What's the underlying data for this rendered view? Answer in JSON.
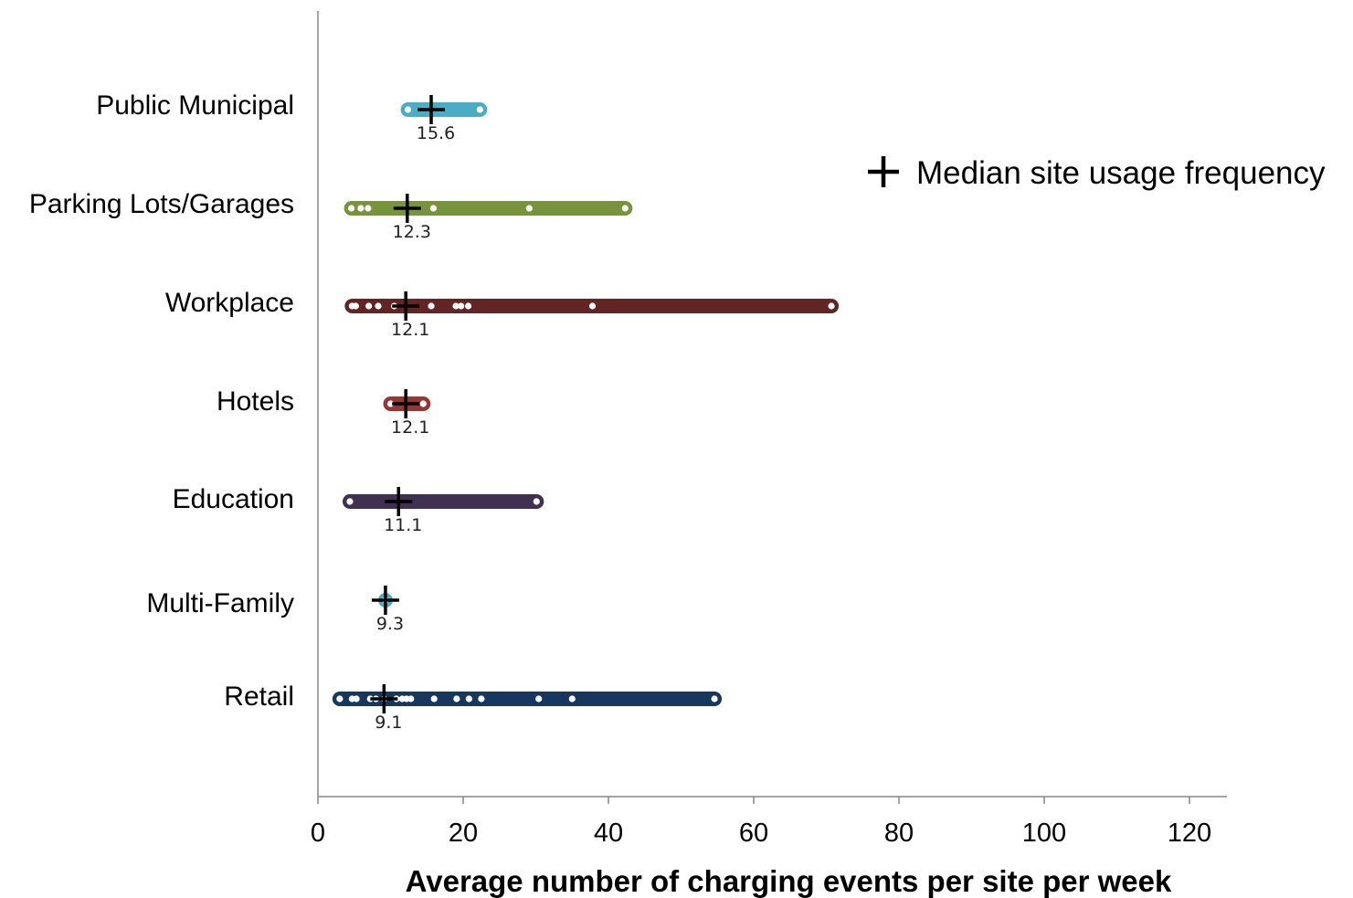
{
  "chart_data": {
    "type": "scatter",
    "title": "",
    "xlabel": "Average number of charging events per site per week",
    "ylabel": "",
    "xlim": [
      0,
      125
    ],
    "xticks": [
      0,
      20,
      40,
      60,
      80,
      100,
      120
    ],
    "grid": false,
    "legend": {
      "label": "Median site usage frequency",
      "position": "right",
      "marker": "plus"
    },
    "categories": [
      {
        "name": "Public Municipal",
        "color": "#4BACC6",
        "min": 12.4,
        "max": 22.3,
        "median": 15.6,
        "median_label": "15.6",
        "points": [
          12.4,
          22.3
        ]
      },
      {
        "name": "Parking Lots/Garages",
        "color": "#77933C",
        "min": 4.6,
        "max": 42.3,
        "median": 12.3,
        "median_label": "12.3",
        "points": [
          4.6,
          5.9,
          6.9,
          15.9,
          29.1,
          42.3
        ]
      },
      {
        "name": "Workplace",
        "color": "#632523",
        "min": 4.7,
        "max": 70.7,
        "median": 12.1,
        "median_label": "12.1",
        "points": [
          4.7,
          5.2,
          7.0,
          8.3,
          10.5,
          15.6,
          19.0,
          19.7,
          20.7,
          37.8,
          70.7
        ]
      },
      {
        "name": "Hotels",
        "color": "#953735",
        "min": 10.0,
        "max": 14.5,
        "median": 12.1,
        "median_label": "12.1",
        "points": [
          10.0,
          14.5
        ]
      },
      {
        "name": "Education",
        "color": "#403151",
        "min": 4.4,
        "max": 30.1,
        "median": 11.1,
        "median_label": "11.1",
        "points": [
          4.4,
          30.1
        ]
      },
      {
        "name": "Multi-Family",
        "color": "#4BACC6",
        "min": 9.3,
        "max": 9.3,
        "median": 9.3,
        "median_label": "9.3",
        "points": [
          9.3
        ]
      },
      {
        "name": "Retail",
        "color": "#17375E",
        "min": 3.0,
        "max": 54.6,
        "median": 9.1,
        "median_label": "9.1",
        "points": [
          3.0,
          4.7,
          5.3,
          7.2,
          8.0,
          9.1,
          10.8,
          11.6,
          12.2,
          12.8,
          16.0,
          19.1,
          20.8,
          22.5,
          30.4,
          35.0,
          54.6
        ]
      }
    ]
  }
}
